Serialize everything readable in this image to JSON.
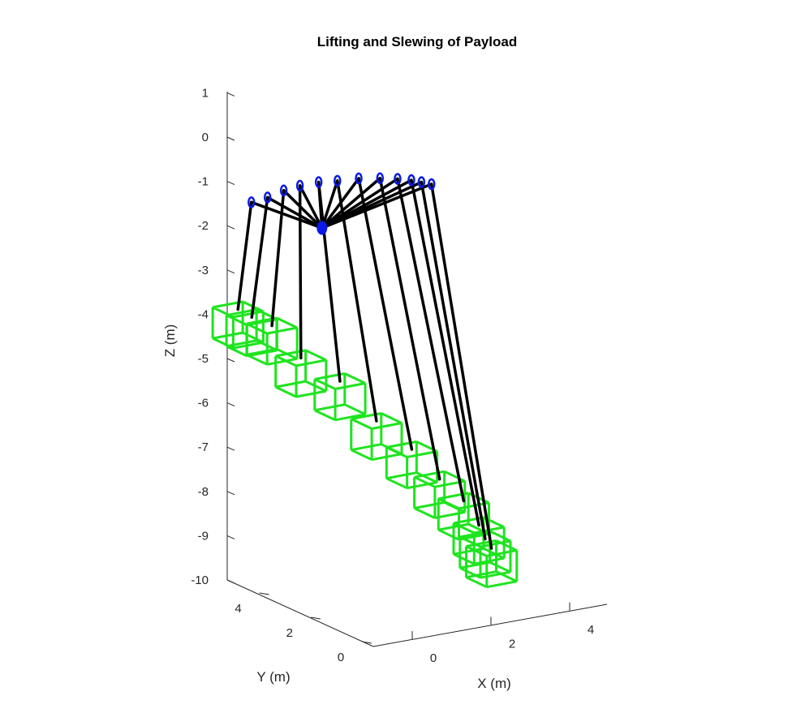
{
  "chart_data": {
    "type": "3d-line",
    "title": "Lifting and Slewing of Payload",
    "xlabel": "X (m)",
    "ylabel": "Y (m)",
    "zlabel": "Z (m)",
    "xlim": [
      -1,
      5
    ],
    "ylim": [
      -0.5,
      5
    ],
    "zlim": [
      -10,
      1
    ],
    "xticks": [
      0,
      2,
      4
    ],
    "yticks": [
      0,
      2,
      4
    ],
    "zticks": [
      1,
      0,
      -1,
      -2,
      -3,
      -4,
      -5,
      -6,
      -7,
      -8,
      -9,
      -10
    ],
    "grid": false,
    "colors": {
      "cable": "#000000",
      "payload": "#1ee41e",
      "boom_tip": "#0a19e6",
      "axes": "#262626"
    },
    "pivot": [
      0,
      2,
      -1.1
    ],
    "frames": [
      {
        "tip": [
          -1.2,
          3.0,
          -0.6
        ],
        "payload_top": [
          -0.6,
          4.4,
          -3.5
        ]
      },
      {
        "tip": [
          -0.7,
          3.1,
          -0.6
        ],
        "payload_top": [
          -0.3,
          4.3,
          -3.7
        ]
      },
      {
        "tip": [
          -0.2,
          3.2,
          -0.55
        ],
        "payload_top": [
          0.1,
          4.1,
          -3.9
        ]
      },
      {
        "tip": [
          0.3,
          3.3,
          -0.55
        ],
        "payload_top": [
          0.6,
          3.7,
          -4.6
        ]
      },
      {
        "tip": [
          0.8,
          3.3,
          -0.55
        ],
        "payload_top": [
          1.3,
          3.2,
          -5.1
        ]
      },
      {
        "tip": [
          1.3,
          3.3,
          -0.6
        ],
        "payload_top": [
          2.0,
          2.8,
          -6.0
        ]
      },
      {
        "tip": [
          1.8,
          3.2,
          -0.6
        ],
        "payload_top": [
          2.6,
          2.3,
          -6.6
        ]
      },
      {
        "tip": [
          2.3,
          3.1,
          -0.65
        ],
        "payload_top": [
          3.0,
          1.8,
          -7.2
        ]
      },
      {
        "tip": [
          2.7,
          3.0,
          -0.7
        ],
        "payload_top": [
          3.3,
          1.3,
          -7.6
        ]
      },
      {
        "tip": [
          3.0,
          2.9,
          -0.75
        ],
        "payload_top": [
          3.5,
          1.0,
          -8.1
        ]
      },
      {
        "tip": [
          3.2,
          2.8,
          -0.8
        ],
        "payload_top": [
          3.6,
          0.9,
          -8.4
        ]
      },
      {
        "tip": [
          3.4,
          2.7,
          -0.85
        ],
        "payload_top": [
          3.7,
          0.8,
          -8.6
        ]
      }
    ]
  }
}
